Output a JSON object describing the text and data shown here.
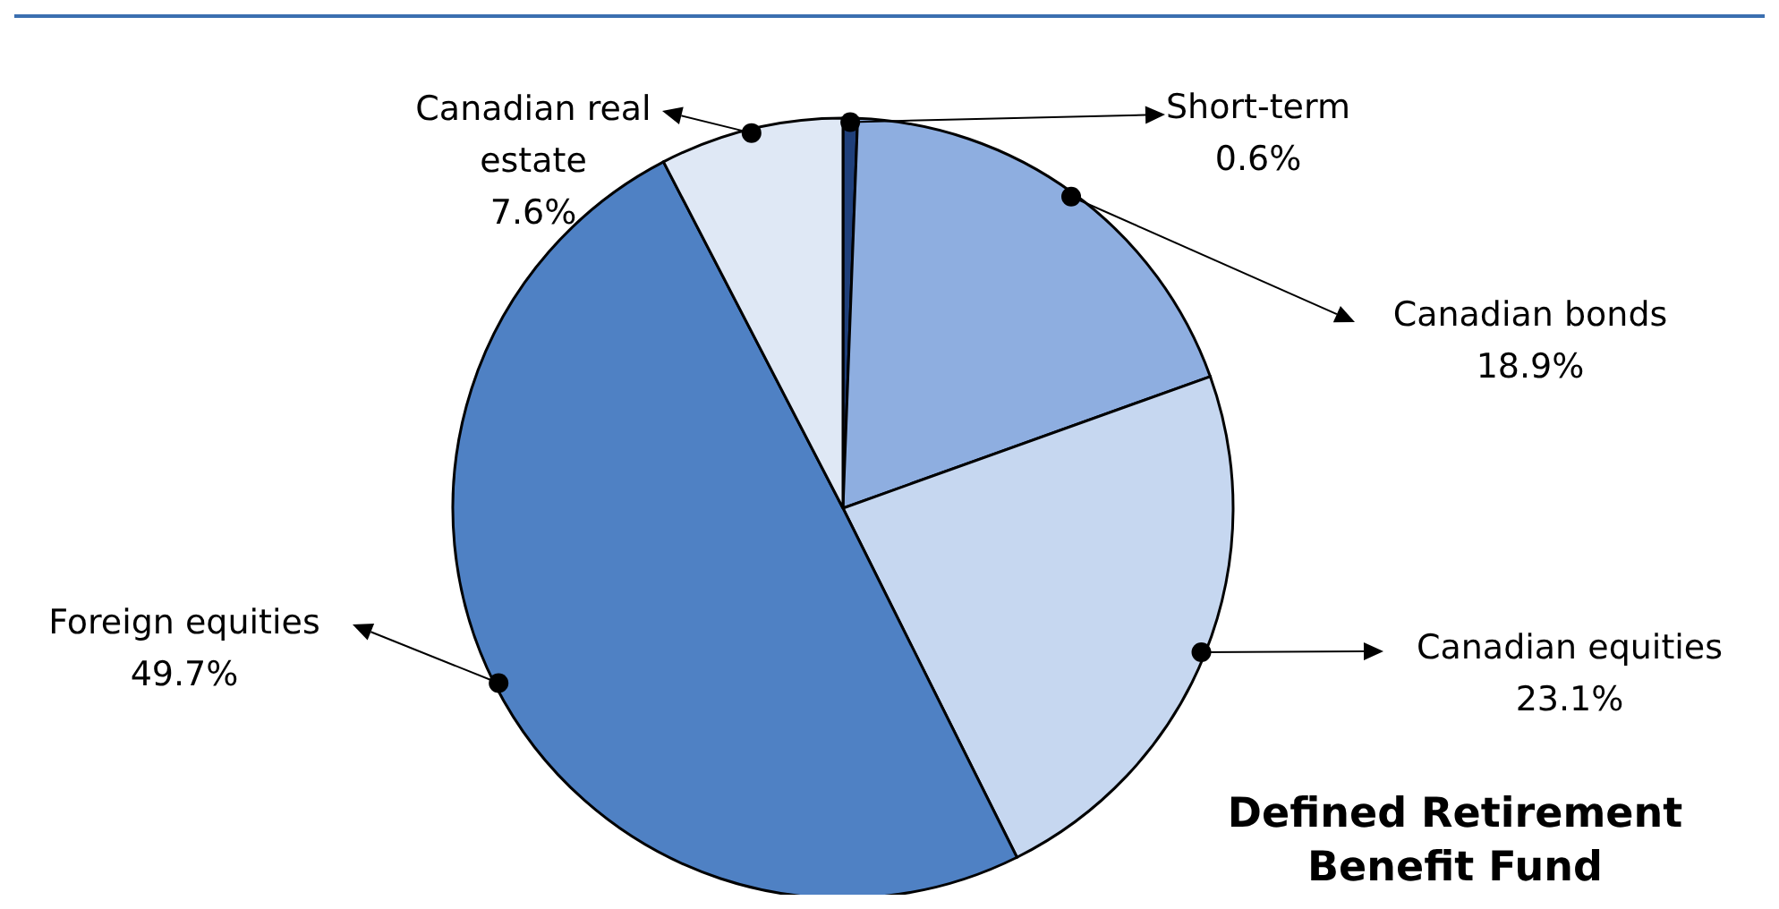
{
  "chart_data": {
    "type": "pie",
    "title": "Defined Retirement Benefit Fund",
    "categories": [
      "Short-term",
      "Canadian bonds",
      "Canadian equities",
      "Foreign equities",
      "Canadian real estate"
    ],
    "values": [
      0.6,
      18.9,
      23.1,
      49.7,
      7.6
    ],
    "colors": [
      "#1f3f7a",
      "#8eaee0",
      "#c6d7f0",
      "#4f81c4",
      "#dfe8f5"
    ],
    "value_labels": [
      "0.6%",
      "18.9%",
      "23.1%",
      "49.7%",
      "7.6%"
    ]
  }
}
